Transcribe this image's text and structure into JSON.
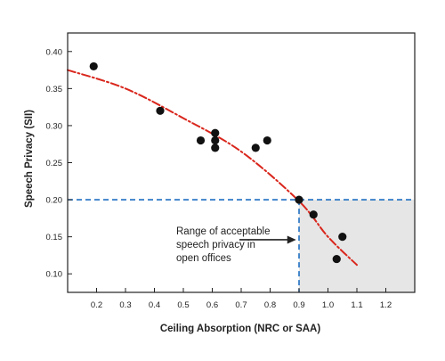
{
  "chart_data": {
    "type": "scatter",
    "xlabel": "Ceiling Absorption (NRC or SAA)",
    "ylabel": "Speech Privacy (SII)",
    "xlim": [
      0.1,
      1.3
    ],
    "ylim": [
      0.075,
      0.425
    ],
    "x_ticks": [
      0.2,
      0.3,
      0.4,
      0.5,
      0.6,
      0.7,
      0.8,
      0.9,
      1.0,
      1.1,
      1.2
    ],
    "x_tick_labels": [
      "0.2",
      "0.3",
      "0.4",
      "0.5",
      "0.6",
      "0.7",
      "0.8",
      "0.9",
      "1.0",
      "1.1",
      "1.2"
    ],
    "y_ticks": [
      0.1,
      0.15,
      0.2,
      0.25,
      0.3,
      0.35,
      0.4
    ],
    "y_tick_labels": [
      "0.10",
      "0.15",
      "0.20",
      "0.25",
      "0.30",
      "0.35",
      "0.40"
    ],
    "grid": false,
    "points": [
      {
        "x": 0.19,
        "y": 0.38
      },
      {
        "x": 0.42,
        "y": 0.32
      },
      {
        "x": 0.56,
        "y": 0.28
      },
      {
        "x": 0.61,
        "y": 0.29
      },
      {
        "x": 0.61,
        "y": 0.28
      },
      {
        "x": 0.61,
        "y": 0.27
      },
      {
        "x": 0.75,
        "y": 0.27
      },
      {
        "x": 0.79,
        "y": 0.28
      },
      {
        "x": 0.9,
        "y": 0.2
      },
      {
        "x": 0.95,
        "y": 0.18
      },
      {
        "x": 1.03,
        "y": 0.12
      },
      {
        "x": 1.05,
        "y": 0.15
      }
    ],
    "trend_line": {
      "style": "dash-dot",
      "color": "#d9261c",
      "points": [
        {
          "x": 0.1,
          "y": 0.375
        },
        {
          "x": 0.3,
          "y": 0.35
        },
        {
          "x": 0.5,
          "y": 0.31
        },
        {
          "x": 0.7,
          "y": 0.265
        },
        {
          "x": 0.9,
          "y": 0.198
        },
        {
          "x": 1.0,
          "y": 0.15
        },
        {
          "x": 1.1,
          "y": 0.112
        }
      ]
    },
    "reference_lines": {
      "color": "#1f6fc2",
      "style": "dashed",
      "x": 0.9,
      "y": 0.2
    },
    "shaded_region": {
      "x_from": 0.9,
      "x_to": 1.3,
      "y_from": 0.075,
      "y_to": 0.2,
      "color": "#e6e6e6"
    },
    "annotation": {
      "lines": [
        "Range of acceptable",
        "speech privacy in",
        "open offices"
      ],
      "arrow_to": {
        "x": 0.89,
        "y": 0.146
      }
    },
    "colors": {
      "points": "#111111",
      "axes": "#222222"
    }
  }
}
